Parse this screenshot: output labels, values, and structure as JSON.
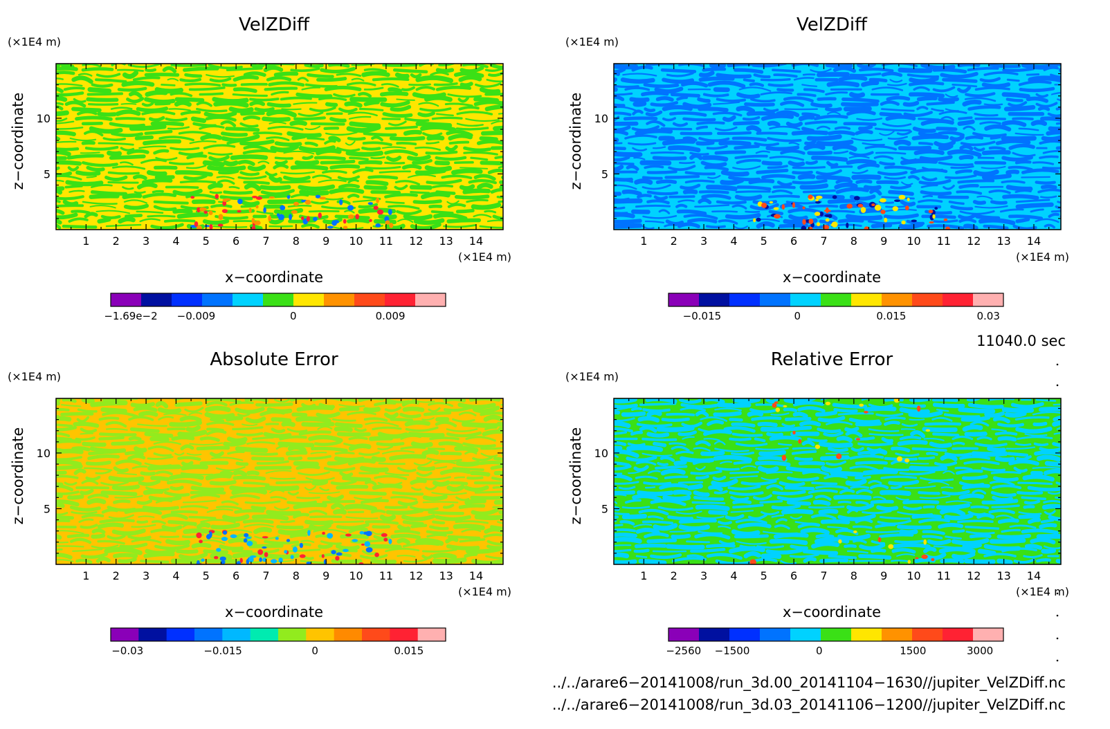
{
  "palette_velz": [
    "#8a00b8",
    "#0010a0",
    "#0030ff",
    "#0073ff",
    "#00d2ff",
    "#3ae016",
    "#ffe600",
    "#ff9200",
    "#ff4a1a",
    "#ff2233",
    "#ffb0b0"
  ],
  "palette_abs": [
    "#8a00b8",
    "#0010a0",
    "#0030ff",
    "#0073ff",
    "#00b8ff",
    "#00ebb0",
    "#92eb1e",
    "#ffc400",
    "#ff8a00",
    "#ff4a1a",
    "#ff2233",
    "#ffb0b0"
  ],
  "palette_rel": [
    "#8a00b8",
    "#0010a0",
    "#0030ff",
    "#0073ff",
    "#00d2ff",
    "#3ae016",
    "#ffe600",
    "#ff9200",
    "#ff4a1a",
    "#ff2233",
    "#ffb0b0"
  ],
  "panels": [
    {
      "id": "velzdiff-a",
      "title": "VelZDiff",
      "xlabel": "x−coordinate",
      "ylabel": "z−coordinate",
      "x_unit": "(×1E4 m)",
      "y_unit": "(×1E4 m)",
      "xlim": [
        0,
        14.9
      ],
      "ylim": [
        0,
        14.9
      ],
      "x_ticks": [
        1,
        2,
        3,
        4,
        5,
        6,
        7,
        8,
        9,
        10,
        11,
        12,
        13,
        14
      ],
      "y_ticks": [
        5,
        10
      ],
      "pattern": {
        "colors": [
          "#ffe600",
          "#3ae016"
        ],
        "accents": [
          "#0073ff",
          "#ff2233",
          "#ff9200"
        ]
      },
      "colorbar": {
        "labels": [
          "−1.69e−2",
          "−0.009",
          "0",
          "0.009"
        ]
      }
    },
    {
      "id": "velzdiff-b",
      "title": "VelZDiff",
      "xlabel": "x−coordinate",
      "ylabel": "z−coordinate",
      "x_unit": "(×1E4 m)",
      "y_unit": "(×1E4 m)",
      "xlim": [
        0,
        14.9
      ],
      "ylim": [
        0,
        14.9
      ],
      "x_ticks": [
        1,
        2,
        3,
        4,
        5,
        6,
        7,
        8,
        9,
        10,
        11,
        12,
        13,
        14
      ],
      "y_ticks": [
        5,
        10
      ],
      "pattern": {
        "colors": [
          "#00d2ff",
          "#0073ff"
        ],
        "accents": [
          "#0010a0",
          "#ffe600",
          "#ff4a1a"
        ]
      },
      "colorbar": {
        "labels": [
          "−0.015",
          "0",
          "0.015",
          "0.03"
        ]
      }
    },
    {
      "id": "absolute-error",
      "title": "Absolute Error",
      "xlabel": "x−coordinate",
      "ylabel": "z−coordinate",
      "x_unit": "(×1E4 m)",
      "y_unit": "(×1E4 m)",
      "xlim": [
        0,
        14.9
      ],
      "ylim": [
        0,
        14.9
      ],
      "x_ticks": [
        1,
        2,
        3,
        4,
        5,
        6,
        7,
        8,
        9,
        10,
        11,
        12,
        13,
        14
      ],
      "y_ticks": [
        5,
        10
      ],
      "pattern": {
        "colors": [
          "#ffc400",
          "#92eb1e"
        ],
        "accents": [
          "#ff2233",
          "#0073ff",
          "#00b8ff"
        ]
      },
      "colorbar": {
        "labels": [
          "−0.03",
          "−0.015",
          "0",
          "0.015"
        ]
      }
    },
    {
      "id": "relative-error",
      "title": "Relative Error",
      "xlabel": "x−coordinate",
      "ylabel": "z−coordinate",
      "x_unit": "(×1E4 m)",
      "y_unit": "(×1E4 m)",
      "xlim": [
        0,
        14.9
      ],
      "ylim": [
        0,
        14.9
      ],
      "x_ticks": [
        1,
        2,
        3,
        4,
        5,
        6,
        7,
        8,
        9,
        10,
        11,
        12,
        13,
        14
      ],
      "y_ticks": [
        5,
        10
      ],
      "pattern": {
        "colors": [
          "#3ae016",
          "#00d2ff"
        ],
        "accents": [
          "#ff4a1a",
          "#ffe600"
        ]
      },
      "colorbar": {
        "labels": [
          "−2560",
          "−1500",
          "0",
          "1500",
          "3000"
        ]
      }
    }
  ],
  "chart_data": [
    {
      "type": "heatmap",
      "title": "VelZDiff",
      "xlabel": "x−coordinate",
      "ylabel": "z−coordinate",
      "xlim": [
        0,
        14.9
      ],
      "ylim": [
        0,
        14.9
      ],
      "colorbar_ticks": [
        -0.0169,
        -0.009,
        0,
        0.009
      ]
    },
    {
      "type": "heatmap",
      "title": "VelZDiff",
      "xlabel": "x−coordinate",
      "ylabel": "z−coordinate",
      "xlim": [
        0,
        14.9
      ],
      "ylim": [
        0,
        14.9
      ],
      "colorbar_ticks": [
        -0.015,
        0,
        0.015,
        0.03
      ]
    },
    {
      "type": "heatmap",
      "title": "Absolute Error",
      "xlabel": "x−coordinate",
      "ylabel": "z−coordinate",
      "xlim": [
        0,
        14.9
      ],
      "ylim": [
        0,
        14.9
      ],
      "colorbar_ticks": [
        -0.03,
        -0.015,
        0,
        0.015
      ]
    },
    {
      "type": "heatmap",
      "title": "Relative Error",
      "xlabel": "x−coordinate",
      "ylabel": "z−coordinate",
      "xlim": [
        0,
        14.9
      ],
      "ylim": [
        0,
        14.9
      ],
      "colorbar_ticks": [
        -2560,
        -1500,
        0,
        1500,
        3000
      ]
    }
  ],
  "timestamp": "11040.0 sec",
  "file_paths": [
    "../../arare6−20141008/run_3d.00_20141104−1630//jupiter_VelZDiff.nc",
    "../../arare6−20141008/run_3d.03_20141106−1200//jupiter_VelZDiff.nc"
  ]
}
